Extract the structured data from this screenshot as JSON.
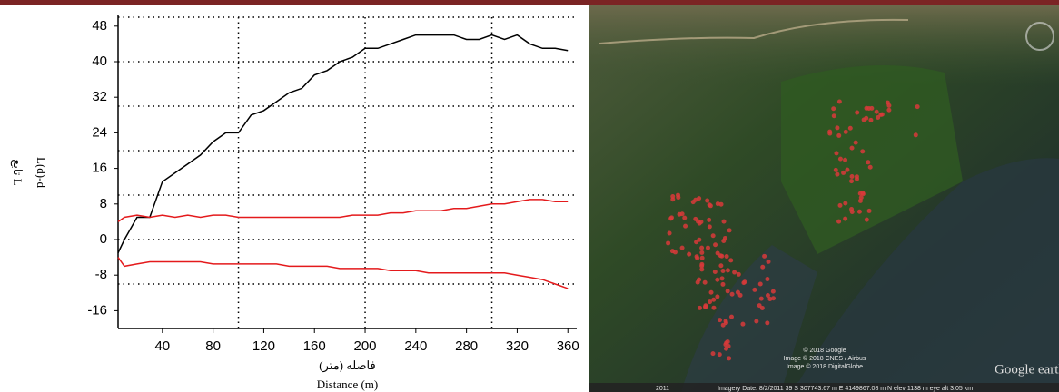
{
  "chart_data": {
    "type": "line",
    "ylabel": "L(d)-d",
    "ylabel2": "تابع L",
    "xlabel": "فاصله (متر)",
    "xlabel2": "Distance (m)",
    "x": [
      5,
      10,
      20,
      30,
      40,
      50,
      60,
      70,
      80,
      90,
      100,
      110,
      120,
      130,
      140,
      150,
      160,
      170,
      180,
      190,
      200,
      210,
      220,
      230,
      240,
      250,
      260,
      270,
      280,
      290,
      300,
      310,
      320,
      330,
      340,
      350,
      360
    ],
    "series": [
      {
        "color": "#000000",
        "values": [
          -3,
          0,
          5,
          5,
          13,
          15,
          17,
          19,
          22,
          24,
          24,
          28,
          29,
          31,
          33,
          34,
          37,
          38,
          40,
          41,
          43,
          43,
          44,
          45,
          46,
          46,
          46,
          46,
          45,
          45,
          46,
          45,
          46,
          44,
          43,
          43,
          42.5
        ]
      },
      {
        "color": "#e41a1c",
        "values": [
          4,
          5,
          5.5,
          5,
          5.5,
          5,
          5.5,
          5,
          5.5,
          5.5,
          5,
          5,
          5,
          5,
          5,
          5,
          5,
          5,
          5,
          5.5,
          5.5,
          5.5,
          6,
          6,
          6.5,
          6.5,
          6.5,
          7,
          7,
          7.5,
          8,
          8,
          8.5,
          9,
          9,
          8.5,
          8.5
        ]
      },
      {
        "color": "#e41a1c",
        "values": [
          -4,
          -6,
          -5.5,
          -5,
          -5,
          -5,
          -5,
          -5,
          -5.5,
          -5.5,
          -5.5,
          -5.5,
          -5.5,
          -5.5,
          -6,
          -6,
          -6,
          -6,
          -6.5,
          -6.5,
          -6.5,
          -6.5,
          -7,
          -7,
          -7,
          -7.5,
          -7.5,
          -7.5,
          -7.5,
          -7.5,
          -7.5,
          -7.5,
          -8,
          -8.5,
          -9,
          -10,
          -11
        ]
      }
    ],
    "xlim": [
      5,
      367
    ],
    "ylim": [
      -20,
      50
    ],
    "xticks": [
      40,
      80,
      120,
      160,
      200,
      240,
      280,
      320,
      360
    ],
    "yticks": [
      -16,
      -8,
      0,
      8,
      16,
      24,
      32,
      40,
      48
    ],
    "xgrid": [
      100,
      200,
      300
    ],
    "ygrid": [
      -10,
      0,
      10,
      20,
      30,
      40,
      50
    ]
  },
  "map": {
    "copyright": [
      "© 2018 Google",
      "Image © 2018 CNES / Airbus",
      "Image © 2018 DigitalGlobe"
    ],
    "logo": "Google earth",
    "year": "2011",
    "status": "Imagery Date: 8/2/2011    39 S 307743.67 m E 4149867.08 m N   elev  1138 m    eye alt  3.05 km"
  }
}
